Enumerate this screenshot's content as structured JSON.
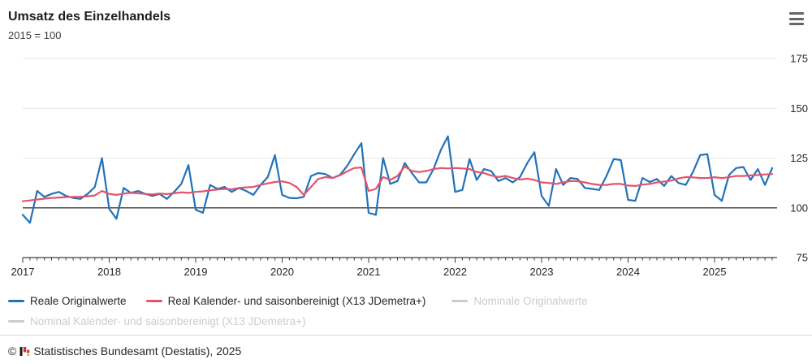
{
  "header": {
    "title": "Umsatz des Einzelhandels",
    "subtitle": "2015 = 100"
  },
  "menu": {
    "icon": "hamburger-menu-icon"
  },
  "chart_data": {
    "type": "line",
    "unit_note": "Index 2015 = 100, monatlich Jan 2017 bis Sep 2025",
    "x_axis": {
      "tick_labels": [
        "2017",
        "2018",
        "2019",
        "2020",
        "2021",
        "2022",
        "2023",
        "2024",
        "2025"
      ],
      "minor_ticks": "monthly"
    },
    "y_axis": {
      "ticks": [
        75,
        100,
        125,
        150,
        175
      ],
      "range": [
        75,
        183
      ],
      "reference_line": 100,
      "labels_side": "right"
    },
    "grid": "horizontal",
    "colors": {
      "grid": "#e6e6e6",
      "axis": "#3c3c3c",
      "labels": "#262626"
    },
    "series": [
      {
        "name": "Reale Originalwerte",
        "color": "#2272b8",
        "visible": true,
        "values": [
          96.5,
          92.5,
          108.5,
          105.5,
          107,
          108,
          106,
          105,
          104.5,
          107,
          110.5,
          125,
          99.5,
          94.5,
          110,
          107.5,
          108.5,
          107,
          106,
          107,
          104.5,
          108,
          112,
          121.5,
          99,
          97.5,
          111.5,
          109.5,
          110.5,
          108,
          110,
          108.5,
          106.5,
          111.5,
          115.5,
          126.5,
          106.5,
          105,
          104.8,
          105.5,
          116,
          117.5,
          117,
          115,
          116.5,
          121,
          127,
          132.5,
          97.5,
          96.5,
          125,
          112,
          113.5,
          122.5,
          117.5,
          112.8,
          112.8,
          119.5,
          129,
          136,
          108,
          109,
          124.5,
          114,
          119.5,
          118.5,
          113.5,
          115,
          112.8,
          115.5,
          122.5,
          128,
          106,
          101,
          119.5,
          111.5,
          115,
          114.5,
          110,
          109.5,
          109,
          116,
          124.5,
          124,
          104,
          103.5,
          115,
          113,
          114.5,
          111,
          116,
          112.5,
          111.5,
          118,
          126.5,
          127,
          106.5,
          103.5,
          116.5,
          120,
          120.5,
          114,
          119.5,
          111.5,
          120
        ]
      },
      {
        "name": "Real Kalender- und saisonbereinigt (X13 JDemetra+)",
        "color": "#e5536b",
        "visible": true,
        "values": [
          103.3,
          103.7,
          104.2,
          104.6,
          105,
          105.2,
          105.4,
          105.5,
          105.6,
          105.8,
          106.2,
          108.5,
          107,
          106.5,
          107.2,
          107.5,
          107.3,
          107,
          106.8,
          107.2,
          106.9,
          107.3,
          107.8,
          107.5,
          108,
          108.3,
          108.8,
          109.2,
          109.5,
          109.3,
          110,
          110.3,
          110.5,
          111.5,
          112.3,
          113,
          113.3,
          112.5,
          110.5,
          106.5,
          110.5,
          114.5,
          115.5,
          115,
          116.3,
          118.3,
          120,
          120.3,
          108.5,
          109.5,
          115.5,
          114,
          116,
          120.8,
          118.5,
          118,
          118.5,
          119.5,
          120,
          119.8,
          120,
          119.8,
          119.5,
          118,
          117.5,
          116.2,
          115.5,
          116,
          115,
          114.2,
          114.7,
          114,
          112.8,
          112.5,
          112,
          112.8,
          113.5,
          113.4,
          112.8,
          112,
          111.5,
          111.5,
          112,
          112,
          111.2,
          111,
          111.7,
          112,
          112.8,
          113.2,
          113.7,
          114.8,
          115.5,
          115.3,
          115,
          115,
          115.4,
          115,
          115.4,
          116,
          116,
          116.3,
          116.5,
          116.8,
          117
        ]
      },
      {
        "name": "Nominale Originalwerte",
        "color": "#c9ccd0",
        "visible": false,
        "values": []
      },
      {
        "name": "Nominal Kalender- und saisonbereinigt (X13 JDemetra+)",
        "color": "#c9ccd0",
        "visible": false,
        "values": []
      }
    ]
  },
  "legend": {
    "items": [
      {
        "label": "Reale Originalwerte",
        "color": "#2272b8",
        "active": true
      },
      {
        "label": "Real Kalender- und saisonbereinigt (X13 JDemetra+)",
        "color": "#e5536b",
        "active": true
      },
      {
        "label": "Nominale Originalwerte",
        "color": "#c9ccd0",
        "active": false
      },
      {
        "label": "Nominal Kalender- und saisonbereinigt (X13 JDemetra+)",
        "color": "#c9ccd0",
        "active": false
      }
    ]
  },
  "footer": {
    "copyright": "©",
    "credit": "Statistisches Bundesamt (Destatis), 2025"
  }
}
